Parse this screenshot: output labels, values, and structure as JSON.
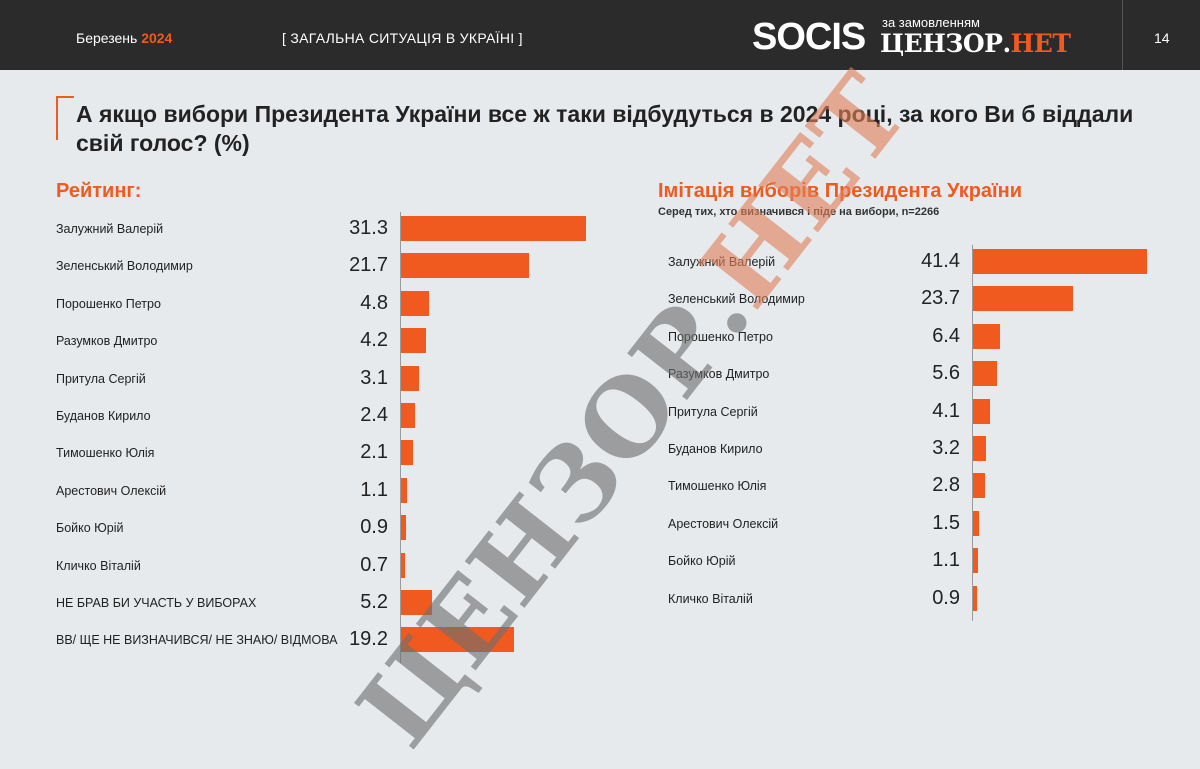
{
  "header": {
    "month": "Березень",
    "year": "2024",
    "section": "[ ЗАГАЛЬНА СИТУАЦІЯ В УКРАЇНІ ]",
    "logo_socis": "SOCIS",
    "logo_note": "за замовленням",
    "logo_censor": "ЦЕНЗОР.",
    "logo_net": "НЕТ",
    "page_number": "14"
  },
  "question": "А якщо вибори Президента України все ж таки відбудуться в 2024 році, за кого Ви б віддали свій голос? (%)",
  "watermark": {
    "main": "ЦЕНЗОР.",
    "net": "НЕТ"
  },
  "colors": {
    "accent": "#f05a1e",
    "header_bg": "#2b2b2b",
    "page_bg": "#e6eaed"
  },
  "chart_data": [
    {
      "type": "bar",
      "orientation": "horizontal",
      "title": "Рейтинг:",
      "categories": [
        "Залужний Валерій",
        "Зеленський Володимир",
        "Порошенко Петро",
        "Разумков Дмитро",
        "Притула Сергій",
        "Буданов Кирило",
        "Тимошенко Юлія",
        "Арестович Олексій",
        "Бойко Юрій",
        "Кличко Віталій",
        "НЕ БРАВ БИ УЧАСТЬ У ВИБОРАХ",
        "ВВ/ ЩЕ НЕ ВИЗНАЧИВСЯ/ НЕ ЗНАЮ/ ВІДМОВА"
      ],
      "values": [
        31.3,
        21.7,
        4.8,
        4.2,
        3.1,
        2.4,
        2.1,
        1.1,
        0.9,
        0.7,
        5.2,
        19.2
      ],
      "labels": [
        "31.3",
        "21.7",
        "4.8",
        "4.2",
        "3.1",
        "2.4",
        "2.1",
        "1.1",
        "0.9",
        "0.7",
        "5.2",
        "19.2"
      ],
      "color": "#f05a1e",
      "grid": false
    },
    {
      "type": "bar",
      "orientation": "horizontal",
      "title": "Імітація виборів Президента України",
      "subtitle": "Серед тих, хто визначився і піде на вибори, n=2266",
      "categories": [
        "Залужний Валерій",
        "Зеленський Володимир",
        "Порошенко Петро",
        "Разумков Дмитро",
        "Притула Сергій",
        "Буданов Кирило",
        "Тимошенко Юлія",
        "Арестович Олексій",
        "Бойко Юрій",
        "Кличко Віталій"
      ],
      "values": [
        41.4,
        23.7,
        6.4,
        5.6,
        4.1,
        3.2,
        2.8,
        1.5,
        1.1,
        0.9
      ],
      "labels": [
        "41.4",
        "23.7",
        "6.4",
        "5.6",
        "4.1",
        "3.2",
        "2.8",
        "1.5",
        "1.1",
        "0.9"
      ],
      "color": "#f05a1e",
      "grid": false
    }
  ]
}
